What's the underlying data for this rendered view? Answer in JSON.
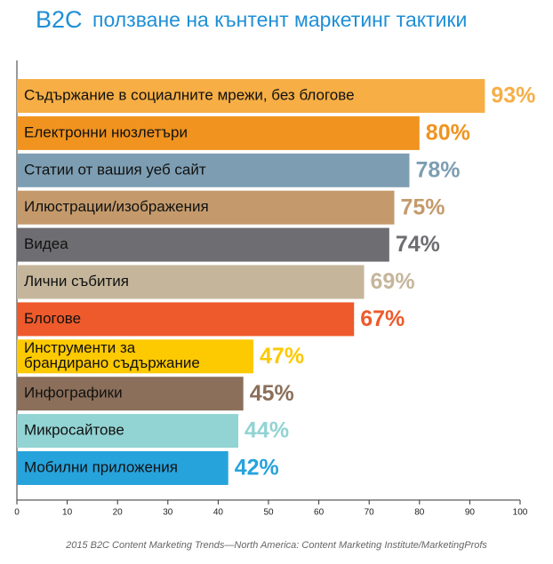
{
  "chart_data": {
    "type": "hbar",
    "title": {
      "brand": "B2C",
      "text": "ползване на кънтент маркетинг тактики"
    },
    "categories": [
      "Съдържание в социалните мрежи, без блогове",
      "Електронни нюзлетъри",
      "Статии от вашия уеб сайт",
      "Илюстрации/изображения",
      "Видеа",
      "Лични събития",
      "Блогове",
      "Инструменти за\nбрандирано съдържание",
      "Инфографики",
      "Микросайтове",
      "Мобилни приложения"
    ],
    "values": [
      93,
      80,
      78,
      75,
      74,
      69,
      67,
      47,
      45,
      44,
      42
    ],
    "value_labels": [
      "93%",
      "80%",
      "78%",
      "75%",
      "74%",
      "69%",
      "67%",
      "47%",
      "45%",
      "44%",
      "42%"
    ],
    "colors": [
      "#f6ae45",
      "#f0931f",
      "#7d9eb2",
      "#c49a6c",
      "#6e6e72",
      "#c5b69b",
      "#ee5a2b",
      "#fdc900",
      "#8b6f5a",
      "#92d3d3",
      "#27a3dc"
    ],
    "xlim": [
      0,
      100
    ],
    "xticks": [
      0,
      10,
      20,
      30,
      40,
      50,
      60,
      70,
      80,
      90,
      100
    ],
    "source": "2015 B2C Content Marketing Trends—North America: Content Marketing Institute/MarketingProfs"
  }
}
